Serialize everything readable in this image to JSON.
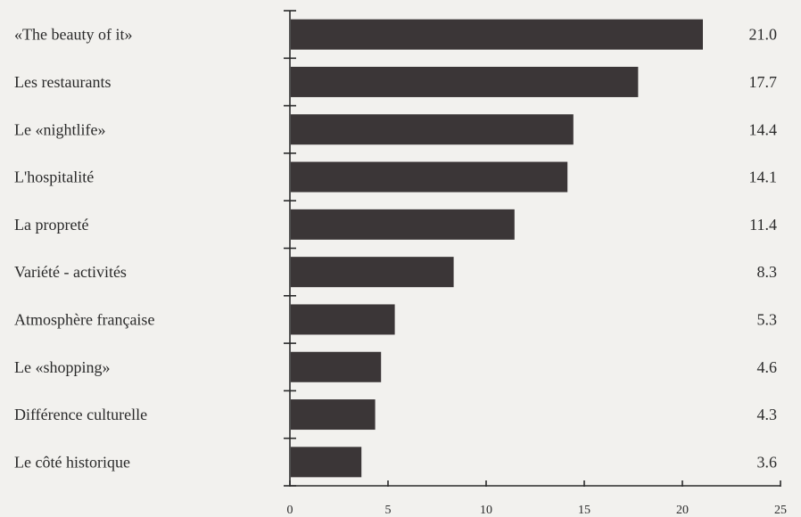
{
  "chart_data": {
    "type": "bar",
    "orientation": "horizontal",
    "categories": [
      "«The beauty of it»",
      "Les restaurants",
      "Le «nightlife»",
      "L'hospitalité",
      "La propreté",
      "Variété - activités",
      "Atmosphère française",
      "Le «shopping»",
      "Différence culturelle",
      "Le côté historique"
    ],
    "values": [
      21.0,
      17.7,
      14.4,
      14.1,
      11.4,
      8.3,
      5.3,
      4.6,
      4.3,
      3.6
    ],
    "value_labels": [
      "21.0",
      "17.7",
      "14.4",
      "14.1",
      "11.4",
      "8.3",
      "5.3",
      "4.6",
      "4.3",
      "3.6"
    ],
    "xlim": [
      0,
      25
    ],
    "xticks": [
      0,
      5,
      10,
      15,
      20,
      25
    ],
    "title": "",
    "xlabel": "",
    "ylabel": "",
    "grid": false,
    "colors": {
      "bar": "#3b3637",
      "axis": "#2a2a2a",
      "background": "#f2f1ee"
    }
  }
}
